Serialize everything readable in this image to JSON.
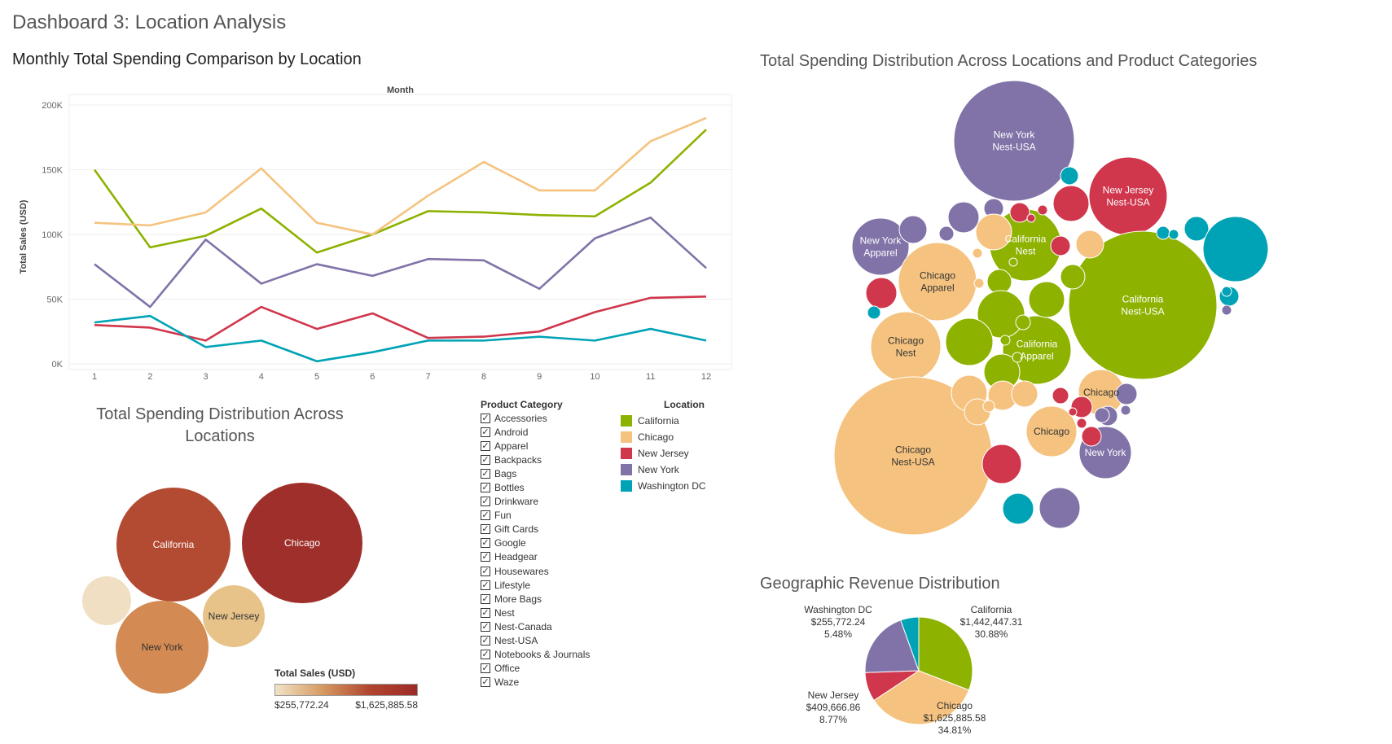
{
  "dashboard_title": "Dashboard 3: Location Analysis",
  "colors": {
    "California": "#8db200",
    "Chicago": "#f5c37f",
    "New Jersey": "#d0364c",
    "New York": "#8173a8",
    "Washington DC": "#00a3b5"
  },
  "chart_data": [
    {
      "type": "line",
      "title": "Monthly Total Spending Comparison by Location",
      "top_label": "Month",
      "ylabel": "Total Sales (USD)",
      "xlabel": "",
      "x": [
        1,
        2,
        3,
        4,
        5,
        6,
        7,
        8,
        9,
        10,
        11,
        12
      ],
      "yticks": [
        "0K",
        "50K",
        "100K",
        "150K",
        "200K"
      ],
      "ylim": [
        0,
        200000
      ],
      "series": [
        {
          "name": "California",
          "values": [
            150000,
            90000,
            99000,
            120000,
            86000,
            100000,
            118000,
            117000,
            115000,
            114000,
            140000,
            181000
          ]
        },
        {
          "name": "Chicago",
          "values": [
            109000,
            107000,
            117000,
            151000,
            109000,
            100000,
            130000,
            156000,
            134000,
            134000,
            172000,
            190000
          ]
        },
        {
          "name": "New Jersey",
          "values": [
            30000,
            28000,
            18000,
            44000,
            27000,
            39000,
            20000,
            21000,
            25000,
            40000,
            51000,
            52000
          ]
        },
        {
          "name": "New York",
          "values": [
            77000,
            44000,
            96000,
            62000,
            77000,
            68000,
            81000,
            80000,
            58000,
            97000,
            113000,
            74000
          ]
        },
        {
          "name": "Washington DC",
          "values": [
            32000,
            37000,
            13000,
            18000,
            2000,
            9000,
            18000,
            18000,
            21000,
            18000,
            27000,
            18000
          ]
        }
      ],
      "grid": true
    },
    {
      "type": "bubble",
      "title": "Total Spending Distribution Across Locations and Product Categories",
      "labeled_bubbles": [
        {
          "location": "New York",
          "category": "Nest-USA",
          "label": "New York\nNest-USA"
        },
        {
          "location": "New Jersey",
          "category": "Nest-USA",
          "label": "New Jersey\nNest-USA"
        },
        {
          "location": "New York",
          "category": "Apparel",
          "label": "New York\nApparel"
        },
        {
          "location": "California",
          "category": "Nest",
          "label": "California\nNest"
        },
        {
          "location": "Chicago",
          "category": "Apparel",
          "label": "Chicago\nApparel"
        },
        {
          "location": "California",
          "category": "Nest-USA",
          "label": "California\nNest-USA"
        },
        {
          "location": "Chicago",
          "category": "Nest",
          "label": "Chicago\nNest"
        },
        {
          "location": "California",
          "category": "Apparel",
          "label": "California\nApparel"
        },
        {
          "location": "Chicago",
          "category": "",
          "label": "Chicago"
        },
        {
          "location": "Chicago",
          "category": "",
          "label": "Chicago"
        },
        {
          "location": "New York",
          "category": "",
          "label": "New York"
        },
        {
          "location": "Chicago",
          "category": "Nest-USA",
          "label": "Chicago\nNest-USA"
        }
      ]
    },
    {
      "type": "bubble",
      "title": "Total Spending Distribution Across Locations",
      "bubbles": [
        {
          "label": "California",
          "value": 1442447.31
        },
        {
          "label": "Chicago",
          "value": 1625885.58
        },
        {
          "label": "New York",
          "value": null
        },
        {
          "label": "New Jersey",
          "value": 409666.86
        },
        {
          "label": "",
          "value": 255772.24
        }
      ],
      "color_legend": {
        "title": "Total Sales (USD)",
        "min": "$255,772.24",
        "max": "$1,625,885.58"
      }
    },
    {
      "type": "pie",
      "title": "Geographic Revenue Distribution",
      "slices": [
        {
          "label": "California",
          "amount": "$1,442,447.31",
          "percent": "30.88%",
          "value": 30.88
        },
        {
          "label": "Chicago",
          "amount": "$1,625,885.58",
          "percent": "34.81%",
          "value": 34.81
        },
        {
          "label": "New Jersey",
          "amount": "$409,666.86",
          "percent": "8.77%",
          "value": 8.77
        },
        {
          "label": "New York",
          "amount": "",
          "percent": "",
          "value": 20.06
        },
        {
          "label": "Washington DC",
          "amount": "$255,772.24",
          "percent": "5.48%",
          "value": 5.48
        }
      ]
    }
  ],
  "filter": {
    "title": "Product Category",
    "items": [
      "Accessories",
      "Android",
      "Apparel",
      "Backpacks",
      "Bags",
      "Bottles",
      "Drinkware",
      "Fun",
      "Gift Cards",
      "Google",
      "Headgear",
      "Housewares",
      "Lifestyle",
      "More Bags",
      "Nest",
      "Nest-Canada",
      "Nest-USA",
      "Notebooks & Journals",
      "Office",
      "Waze"
    ],
    "checked_mark": "✓"
  },
  "legend": {
    "title": "Location",
    "items": [
      "California",
      "Chicago",
      "New Jersey",
      "New York",
      "Washington DC"
    ]
  }
}
